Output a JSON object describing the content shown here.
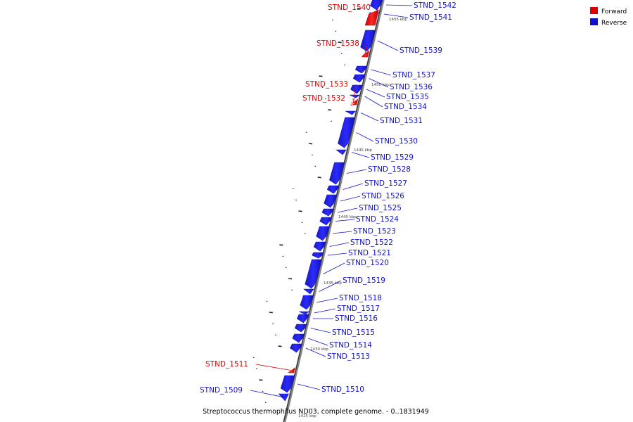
{
  "legend": {
    "forward_label": "Forward",
    "reverse_label": "Reverse",
    "forward_color": "#e00000",
    "reverse_color": "#1010d0"
  },
  "caption": "Streptococcus thermophilus ND03, complete genome. - 0..1831949",
  "tick_labels": [
    "1455 kbp",
    "1450 kbp",
    "1445 kbp",
    "1440 kbp",
    "1435 kbp",
    "1430 kbp",
    "1425 kbp"
  ],
  "genes": [
    {
      "name": "STND_1542",
      "strand": "reverse"
    },
    {
      "name": "STND_1541",
      "strand": "reverse"
    },
    {
      "name": "STND_1540",
      "strand": "forward"
    },
    {
      "name": "STND_1539",
      "strand": "reverse"
    },
    {
      "name": "STND_1538",
      "strand": "forward"
    },
    {
      "name": "STND_1537",
      "strand": "reverse"
    },
    {
      "name": "STND_1536",
      "strand": "reverse"
    },
    {
      "name": "STND_1535",
      "strand": "reverse"
    },
    {
      "name": "STND_1534",
      "strand": "reverse"
    },
    {
      "name": "STND_1533",
      "strand": "forward"
    },
    {
      "name": "STND_1532",
      "strand": "forward"
    },
    {
      "name": "STND_1531",
      "strand": "reverse"
    },
    {
      "name": "STND_1530",
      "strand": "reverse"
    },
    {
      "name": "STND_1529",
      "strand": "reverse"
    },
    {
      "name": "STND_1528",
      "strand": "reverse"
    },
    {
      "name": "STND_1527",
      "strand": "reverse"
    },
    {
      "name": "STND_1526",
      "strand": "reverse"
    },
    {
      "name": "STND_1525",
      "strand": "reverse"
    },
    {
      "name": "STND_1524",
      "strand": "reverse"
    },
    {
      "name": "STND_1523",
      "strand": "reverse"
    },
    {
      "name": "STND_1522",
      "strand": "reverse"
    },
    {
      "name": "STND_1521",
      "strand": "reverse"
    },
    {
      "name": "STND_1520",
      "strand": "reverse"
    },
    {
      "name": "STND_1519",
      "strand": "reverse"
    },
    {
      "name": "STND_1518",
      "strand": "reverse"
    },
    {
      "name": "STND_1517",
      "strand": "reverse"
    },
    {
      "name": "STND_1516",
      "strand": "reverse"
    },
    {
      "name": "STND_1515",
      "strand": "reverse"
    },
    {
      "name": "STND_1514",
      "strand": "reverse"
    },
    {
      "name": "STND_1513",
      "strand": "reverse"
    },
    {
      "name": "STND_1511",
      "strand": "forward"
    },
    {
      "name": "STND_1510",
      "strand": "reverse"
    },
    {
      "name": "STND_1509",
      "strand": "reverse"
    }
  ]
}
